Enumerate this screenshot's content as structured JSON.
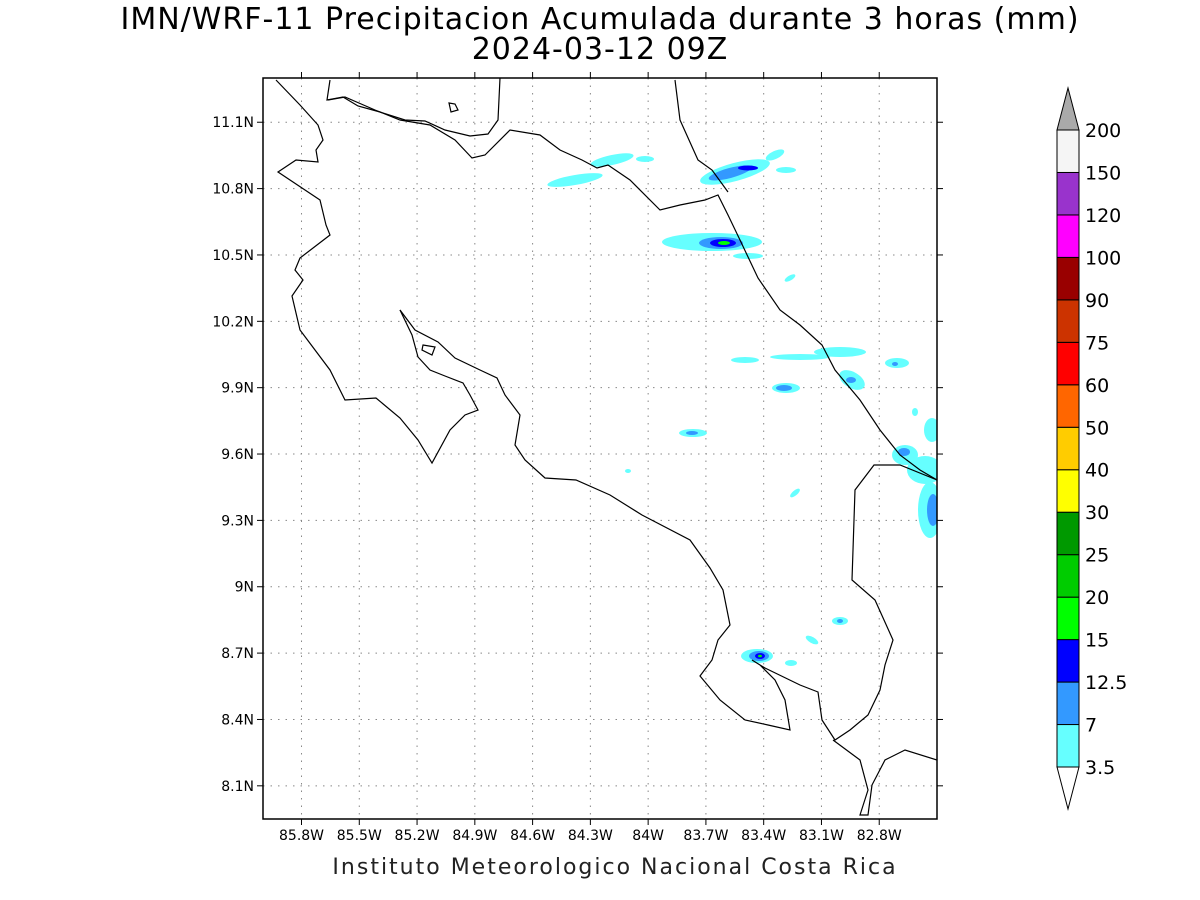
{
  "title_line1": "IMN/WRF-11 Precipitacion Acumulada durante 3 horas (mm)",
  "title_line2": "2024-03-12 09Z",
  "footer": "Instituto Meteorologico Nacional Costa Rica",
  "map": {
    "lon_range": [
      -86.0,
      -82.5
    ],
    "lat_range": [
      7.95,
      11.3
    ],
    "lat_ticks": [
      {
        "value": 11.1,
        "label": "11.1N"
      },
      {
        "value": 10.8,
        "label": "10.8N"
      },
      {
        "value": 10.5,
        "label": "10.5N"
      },
      {
        "value": 10.2,
        "label": "10.2N"
      },
      {
        "value": 9.9,
        "label": "9.9N"
      },
      {
        "value": 9.6,
        "label": "9.6N"
      },
      {
        "value": 9.3,
        "label": "9.3N"
      },
      {
        "value": 9.0,
        "label": "9N"
      },
      {
        "value": 8.7,
        "label": "8.7N"
      },
      {
        "value": 8.4,
        "label": "8.4N"
      },
      {
        "value": 8.1,
        "label": "8.1N"
      }
    ],
    "lon_ticks": [
      {
        "value": -85.8,
        "label": "85.8W"
      },
      {
        "value": -85.5,
        "label": "85.5W"
      },
      {
        "value": -85.2,
        "label": "85.2W"
      },
      {
        "value": -84.9,
        "label": "84.9W"
      },
      {
        "value": -84.6,
        "label": "84.6W"
      },
      {
        "value": -84.3,
        "label": "84.3W"
      },
      {
        "value": -84.0,
        "label": "84W"
      },
      {
        "value": -83.7,
        "label": "83.7W"
      },
      {
        "value": -83.4,
        "label": "83.4W"
      },
      {
        "value": -83.1,
        "label": "83.1W"
      },
      {
        "value": -82.8,
        "label": "82.8W"
      }
    ],
    "grid": true
  },
  "colorbar": {
    "levels": [
      {
        "label": "3.5",
        "color": "#66ffff"
      },
      {
        "label": "7",
        "color": "#3399ff"
      },
      {
        "label": "12.5",
        "color": "#0000ff"
      },
      {
        "label": "15",
        "color": "#00ff00"
      },
      {
        "label": "20",
        "color": "#00cc00"
      },
      {
        "label": "25",
        "color": "#009900"
      },
      {
        "label": "30",
        "color": "#ffff00"
      },
      {
        "label": "40",
        "color": "#ffcc00"
      },
      {
        "label": "50",
        "color": "#ff6600"
      },
      {
        "label": "60",
        "color": "#ff0000"
      },
      {
        "label": "75",
        "color": "#cc3300"
      },
      {
        "label": "90",
        "color": "#990000"
      },
      {
        "label": "100",
        "color": "#ff00ff"
      },
      {
        "label": "120",
        "color": "#9933cc"
      },
      {
        "label": "150",
        "color": "#f5f5f5"
      },
      {
        "label": "200",
        "color": "#aaaaaa"
      }
    ]
  }
}
